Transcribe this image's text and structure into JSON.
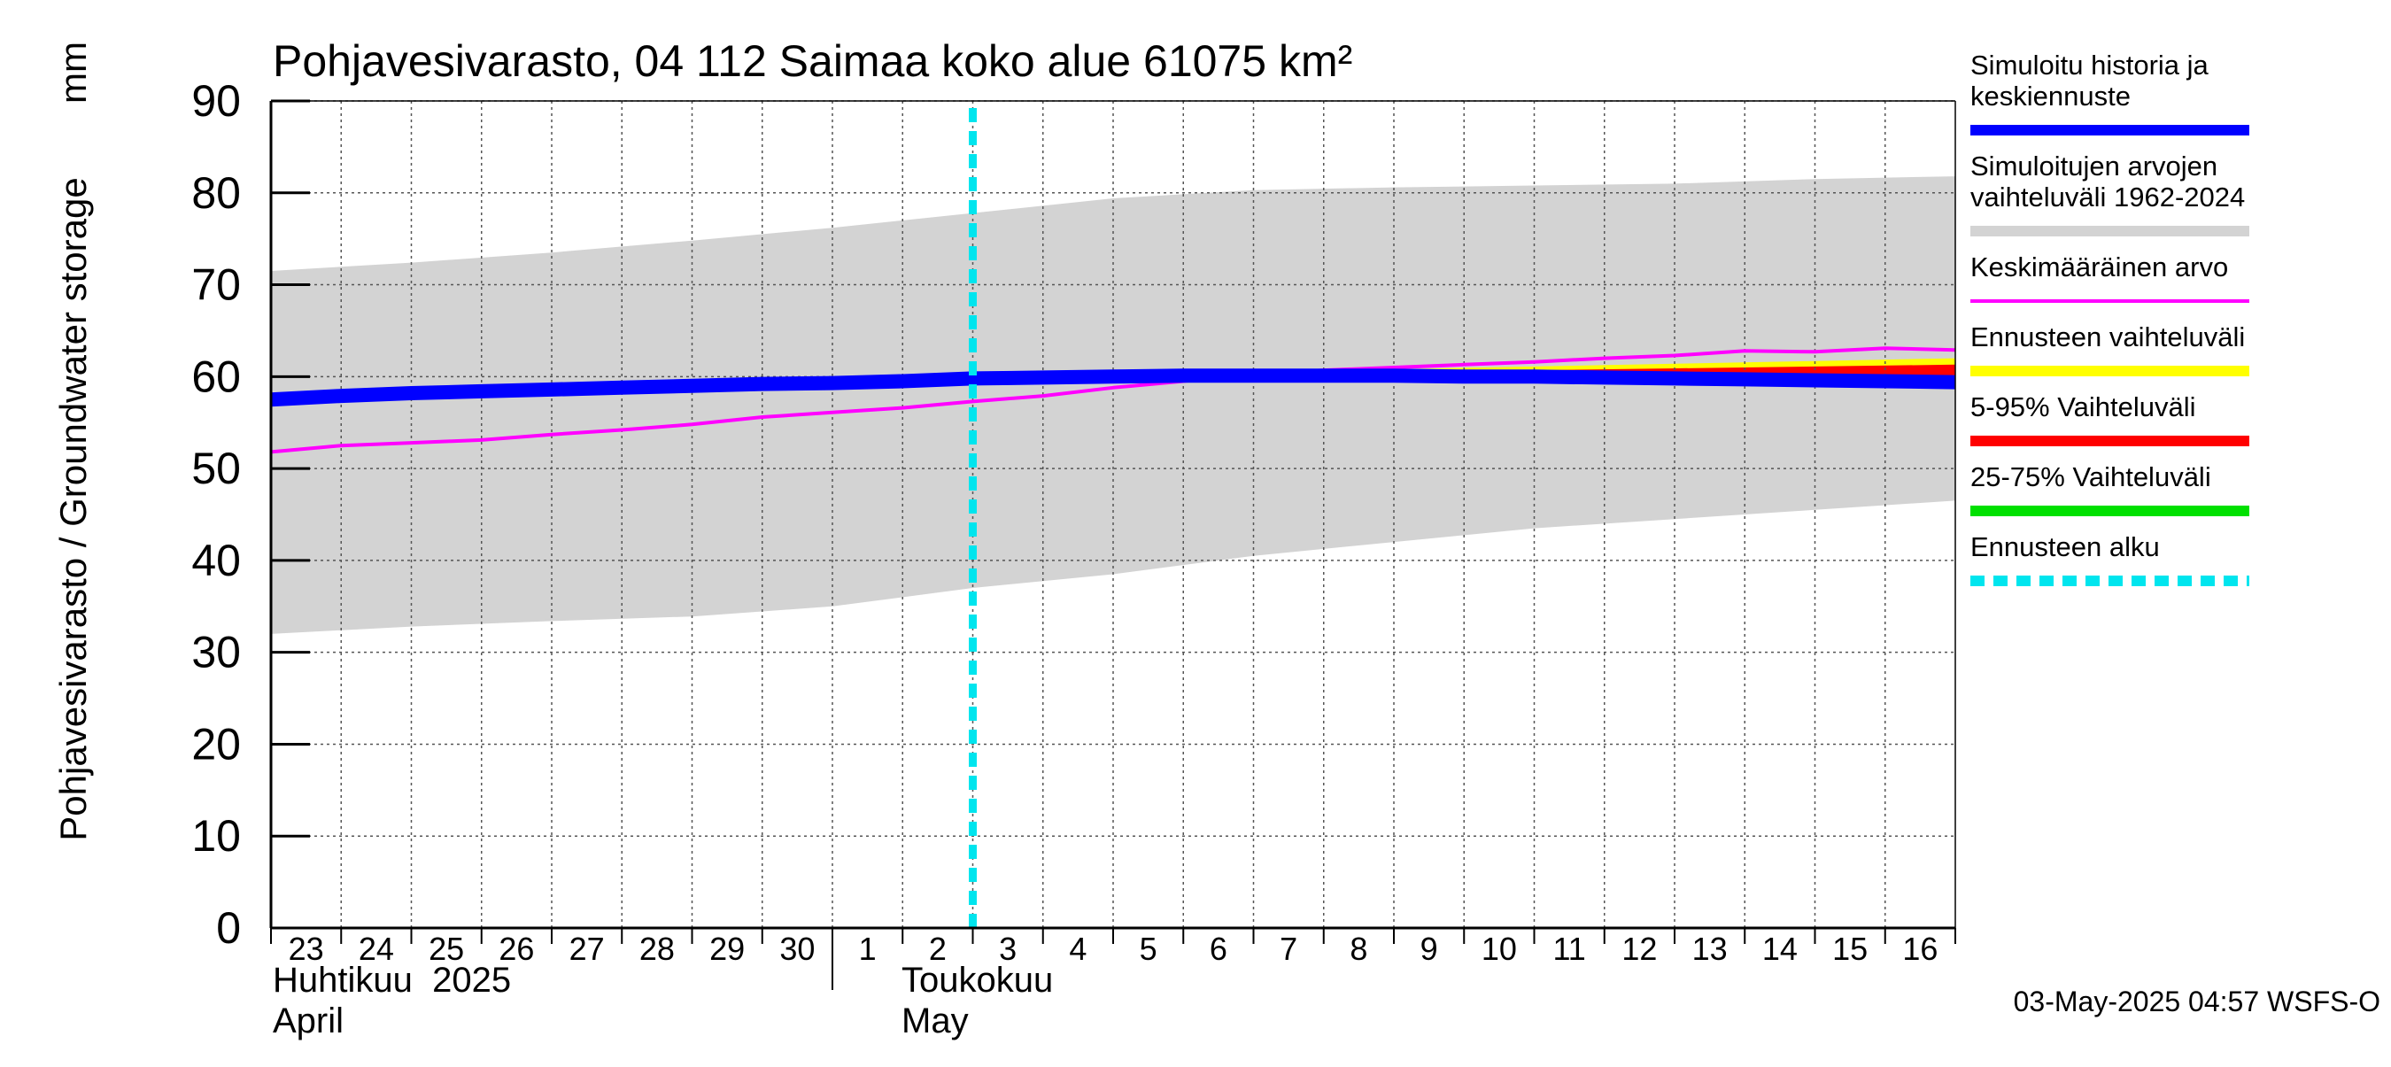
{
  "chart_data": {
    "type": "line",
    "title": "Pohjavesivarasto, 04 112 Saimaa koko alue 61075 km²",
    "ylabel": "Pohjavesivarasto / Groundwater storage",
    "yunit": "mm",
    "ylim": [
      0,
      90
    ],
    "yticks": [
      0,
      10,
      20,
      30,
      40,
      50,
      60,
      70,
      80,
      90
    ],
    "xlim": [
      0,
      24
    ],
    "x_tick_labels": [
      "23",
      "24",
      "25",
      "26",
      "27",
      "28",
      "29",
      "30",
      "1",
      "2",
      "3",
      "4",
      "5",
      "6",
      "7",
      "8",
      "9",
      "10",
      "11",
      "12",
      "13",
      "14",
      "15",
      "16"
    ],
    "months": [
      {
        "fi": "Huhtikuu  2025",
        "en": "April"
      },
      {
        "fi": "Toukokuu",
        "en": "May"
      }
    ],
    "grid": true,
    "legend_position": "right",
    "forecast_start_x": 10.0,
    "series": [
      {
        "name": "Simuloitujen arvojen vaihteluväli 1962-2024",
        "kind": "band",
        "color": "#d3d3d3",
        "x": [
          0,
          2,
          4,
          6,
          8,
          10,
          12,
          14,
          16,
          18,
          20,
          22,
          24
        ],
        "upper": [
          71.5,
          72.4,
          73.5,
          74.8,
          76.2,
          77.8,
          79.4,
          80.3,
          80.6,
          80.8,
          81.0,
          81.5,
          81.8
        ],
        "lower": [
          32.0,
          32.8,
          33.4,
          33.9,
          35.0,
          37.0,
          38.5,
          40.5,
          42.0,
          43.5,
          44.5,
          45.5,
          46.5
        ]
      },
      {
        "name": "25-75% Vaihteluväli",
        "kind": "band",
        "color": "#00e000",
        "x": [
          14,
          16,
          18,
          20,
          22,
          24
        ],
        "upper": [
          60.2,
          60.3,
          60.4,
          60.5,
          60.6,
          60.7
        ],
        "lower": [
          59.8,
          59.7,
          59.6,
          59.5,
          59.4,
          59.3
        ]
      },
      {
        "name": "Ennusteen vaihteluväli",
        "kind": "band",
        "color": "#ffff00",
        "x": [
          14,
          16,
          18,
          20,
          22,
          24
        ],
        "upper": [
          60.6,
          60.8,
          61.1,
          61.4,
          61.7,
          62.0
        ],
        "lower": [
          59.7,
          59.6,
          59.5,
          59.4,
          59.3,
          59.2
        ]
      },
      {
        "name": "5-95% Vaihteluväli",
        "kind": "band",
        "color": "#ff0000",
        "x": [
          14,
          16,
          18,
          20,
          22,
          24
        ],
        "upper": [
          60.3,
          60.5,
          60.7,
          60.9,
          61.1,
          61.3
        ],
        "lower": [
          59.7,
          59.6,
          59.5,
          59.4,
          59.3,
          59.1
        ]
      },
      {
        "name": "Keskimääräinen arvo",
        "kind": "line",
        "color": "#ff00ff",
        "x": [
          0,
          1,
          2,
          3,
          4,
          5,
          6,
          7,
          8,
          9,
          10,
          11,
          12,
          13,
          14,
          15,
          16,
          17,
          18,
          19,
          20,
          21,
          22,
          23,
          24
        ],
        "y": [
          51.8,
          52.5,
          52.8,
          53.1,
          53.7,
          54.2,
          54.8,
          55.6,
          56.1,
          56.6,
          57.3,
          57.9,
          58.8,
          59.5,
          60.3,
          60.7,
          61.0,
          61.3,
          61.6,
          62.0,
          62.3,
          62.8,
          62.7,
          63.1,
          62.9
        ]
      },
      {
        "name": "Simuloitu historia ja keskiennuste",
        "kind": "line",
        "color": "#0000ff",
        "x": [
          0,
          1,
          2,
          3,
          4,
          5,
          6,
          7,
          8,
          9,
          10,
          11,
          12,
          13,
          14,
          15,
          16,
          17,
          18,
          19,
          20,
          21,
          22,
          23,
          24
        ],
        "y": [
          57.5,
          57.9,
          58.2,
          58.4,
          58.6,
          58.8,
          59.0,
          59.2,
          59.3,
          59.5,
          59.8,
          59.9,
          60.0,
          60.1,
          60.1,
          60.1,
          60.1,
          60.0,
          60.0,
          59.9,
          59.8,
          59.7,
          59.6,
          59.5,
          59.4
        ]
      }
    ],
    "legend": [
      {
        "label": "Simuloitu historia ja keskiennuste",
        "color": "#0000ff",
        "style": "solid"
      },
      {
        "label": "Simuloitujen arvojen vaihteluväli 1962-2024",
        "color": "#d3d3d3",
        "style": "solid"
      },
      {
        "label": "Keskimääräinen arvo",
        "color": "#ff00ff",
        "style": "thin"
      },
      {
        "label": "Ennusteen vaihteluväli",
        "color": "#ffff00",
        "style": "solid"
      },
      {
        "label": "5-95% Vaihteluväli",
        "color": "#ff0000",
        "style": "solid"
      },
      {
        "label": "25-75% Vaihteluväli",
        "color": "#00e000",
        "style": "solid"
      },
      {
        "label": "Ennusteen alku",
        "color": "#00e5ee",
        "style": "dashed"
      }
    ],
    "timestamp": "03-May-2025 04:57 WSFS-O"
  }
}
